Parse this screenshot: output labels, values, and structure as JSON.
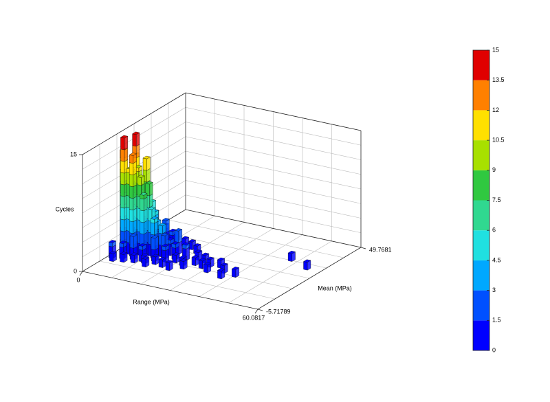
{
  "chart_data": {
    "type": "bar3d",
    "x_label": "Range (MPa)",
    "y_label": "Mean (MPa)",
    "z_label": "Cycles",
    "xlim": [
      0,
      60.0817
    ],
    "xticks": [
      0,
      60.0817
    ],
    "ylim": [
      -5.71789,
      49.7681
    ],
    "yticks": [
      -5.71789,
      49.7681
    ],
    "zlim": [
      0,
      15
    ],
    "zticks": [
      0,
      15
    ],
    "x": [
      1.5,
      1.5,
      3,
      3,
      3,
      4.5,
      4.5,
      4.5,
      6,
      6,
      6,
      7.5,
      7.5,
      7.5,
      9,
      9,
      9,
      10.5,
      10.5,
      12,
      12,
      13.5,
      13.5,
      15,
      15,
      16.5,
      16.5,
      18,
      19.5,
      21,
      22.5,
      24,
      25.5,
      1.5,
      3,
      4.5,
      6,
      7.5,
      9,
      10.5,
      12,
      13.5,
      15,
      18,
      21,
      24,
      1.5,
      3,
      4.5,
      6,
      7.5,
      9,
      10.5,
      12,
      15,
      18,
      21,
      1.5,
      27,
      28.5,
      30,
      31.5,
      33,
      36,
      37.5,
      40.5,
      48,
      55.5
    ],
    "y": [
      14,
      17,
      12,
      15,
      18,
      13,
      16,
      19,
      12,
      15,
      18,
      14,
      17,
      20,
      13,
      16,
      19,
      15,
      18,
      14,
      17,
      16,
      12,
      15,
      18,
      13,
      20,
      16,
      14,
      17,
      13,
      19,
      15,
      8,
      6,
      9,
      7,
      10,
      8,
      10,
      9,
      7,
      10,
      9,
      8,
      11,
      24,
      26,
      28,
      24,
      27,
      25,
      28,
      24,
      26,
      25,
      23,
      30,
      18,
      14,
      16,
      12,
      17,
      14,
      10,
      13,
      31.5,
      28
    ],
    "values": [
      13,
      10,
      15,
      9,
      12,
      11,
      15,
      8,
      13,
      11,
      7,
      10,
      12,
      6,
      8,
      9,
      5,
      6,
      4,
      5,
      3,
      4,
      3,
      3,
      2,
      2,
      3,
      2,
      1,
      2,
      1,
      1,
      1,
      2,
      1,
      2,
      1,
      3,
      1,
      2,
      1,
      1,
      1,
      1,
      1,
      1,
      3,
      2,
      1,
      4,
      2,
      3,
      1,
      2,
      1,
      1,
      1,
      1,
      1,
      1,
      1,
      1,
      1,
      1,
      1,
      1,
      1,
      1
    ],
    "colormap": [
      "#0000ff",
      "#0050ff",
      "#00a8ff",
      "#20e0e0",
      "#30d890",
      "#30c840",
      "#a8e000",
      "#ffe000",
      "#ff8000",
      "#e00000"
    ],
    "clim": [
      0,
      15
    ],
    "cticks": [
      0,
      1.5,
      3,
      4.5,
      6,
      7.5,
      9,
      10.5,
      12,
      13.5,
      15
    ],
    "grid": true
  }
}
